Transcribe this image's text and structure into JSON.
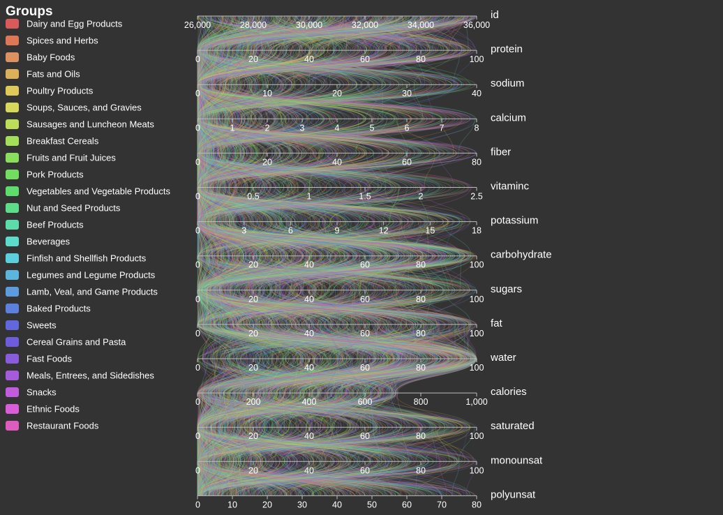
{
  "chart_data": {
    "type": "parallel-coordinates",
    "legend": {
      "title": "Groups",
      "placement": "left",
      "items": [
        {
          "label": "Dairy and Egg Products",
          "color": "#d95a5a"
        },
        {
          "label": "Spices and Herbs",
          "color": "#dd7755"
        },
        {
          "label": "Baby Foods",
          "color": "#dd9160"
        },
        {
          "label": "Fats and Oils",
          "color": "#dcb05a"
        },
        {
          "label": "Poultry Products",
          "color": "#dcc95a"
        },
        {
          "label": "Soups, Sauces, and Gravies",
          "color": "#d5d85a"
        },
        {
          "label": "Sausages and Luncheon Meats",
          "color": "#bede5a"
        },
        {
          "label": "Breakfast Cereals",
          "color": "#a5df5a"
        },
        {
          "label": "Fruits and Fruit Juices",
          "color": "#8ade5c"
        },
        {
          "label": "Pork Products",
          "color": "#72dd5e"
        },
        {
          "label": "Vegetables and Vegetable Products",
          "color": "#5ddd6c"
        },
        {
          "label": "Nut and Seed Products",
          "color": "#5ddd8a"
        },
        {
          "label": "Beef Products",
          "color": "#5ddcab"
        },
        {
          "label": "Beverages",
          "color": "#5cdccb"
        },
        {
          "label": "Finfish and Shellfish Products",
          "color": "#5ccfdd"
        },
        {
          "label": "Legumes and Legume Products",
          "color": "#5cb5dd"
        },
        {
          "label": "Lamb, Veal, and Game Products",
          "color": "#5c9bdd"
        },
        {
          "label": "Baked Products",
          "color": "#5c80dd"
        },
        {
          "label": "Sweets",
          "color": "#6167dd"
        },
        {
          "label": "Cereal Grains and Pasta",
          "color": "#6e5cdd"
        },
        {
          "label": "Fast Foods",
          "color": "#8a5cdd"
        },
        {
          "label": "Meals, Entrees, and Sidedishes",
          "color": "#a45cdd"
        },
        {
          "label": "Snacks",
          "color": "#c05cdd"
        },
        {
          "label": "Ethnic Foods",
          "color": "#d95cd9"
        },
        {
          "label": "Restaurant Foods",
          "color": "#dd5cbe"
        }
      ]
    },
    "axes": [
      {
        "name": "id",
        "range": [
          26000,
          36000
        ],
        "ticks": [
          "26,000",
          "28,000",
          "30,000",
          "32,000",
          "34,000",
          "36,000"
        ]
      },
      {
        "name": "protein",
        "range": [
          0,
          100
        ],
        "ticks": [
          "0",
          "20",
          "40",
          "60",
          "80",
          "100"
        ]
      },
      {
        "name": "sodium",
        "range": [
          0,
          40
        ],
        "ticks": [
          "0",
          "10",
          "20",
          "30",
          "40"
        ]
      },
      {
        "name": "calcium",
        "range": [
          0,
          8
        ],
        "ticks": [
          "0",
          "1",
          "2",
          "3",
          "4",
          "5",
          "6",
          "7",
          "8"
        ]
      },
      {
        "name": "fiber",
        "range": [
          0,
          80
        ],
        "ticks": [
          "0",
          "20",
          "40",
          "60",
          "80"
        ]
      },
      {
        "name": "vitaminc",
        "range": [
          0,
          2.5
        ],
        "ticks": [
          "0",
          "0.5",
          "1",
          "1.5",
          "2",
          "2.5"
        ]
      },
      {
        "name": "potassium",
        "range": [
          0,
          18
        ],
        "ticks": [
          "0",
          "3",
          "6",
          "9",
          "12",
          "15",
          "18"
        ]
      },
      {
        "name": "carbohydrate",
        "range": [
          0,
          100
        ],
        "ticks": [
          "0",
          "20",
          "40",
          "60",
          "80",
          "100"
        ]
      },
      {
        "name": "sugars",
        "range": [
          0,
          100
        ],
        "ticks": [
          "0",
          "20",
          "40",
          "60",
          "80",
          "100"
        ]
      },
      {
        "name": "fat",
        "range": [
          0,
          100
        ],
        "ticks": [
          "0",
          "20",
          "40",
          "60",
          "80",
          "100"
        ]
      },
      {
        "name": "water",
        "range": [
          0,
          100
        ],
        "ticks": [
          "0",
          "20",
          "40",
          "60",
          "80",
          "100"
        ]
      },
      {
        "name": "calories",
        "range": [
          0,
          1000
        ],
        "ticks": [
          "0",
          "200",
          "400",
          "600",
          "800",
          "1,000"
        ]
      },
      {
        "name": "saturated",
        "range": [
          0,
          100
        ],
        "ticks": [
          "0",
          "20",
          "40",
          "60",
          "80",
          "100"
        ]
      },
      {
        "name": "monounsat",
        "range": [
          0,
          100
        ],
        "ticks": [
          "0",
          "20",
          "40",
          "60",
          "80",
          "100"
        ]
      },
      {
        "name": "polyunsat",
        "range": [
          0,
          80
        ],
        "ticks": [
          "0",
          "10",
          "20",
          "30",
          "40",
          "50",
          "60",
          "70",
          "80"
        ]
      }
    ]
  }
}
